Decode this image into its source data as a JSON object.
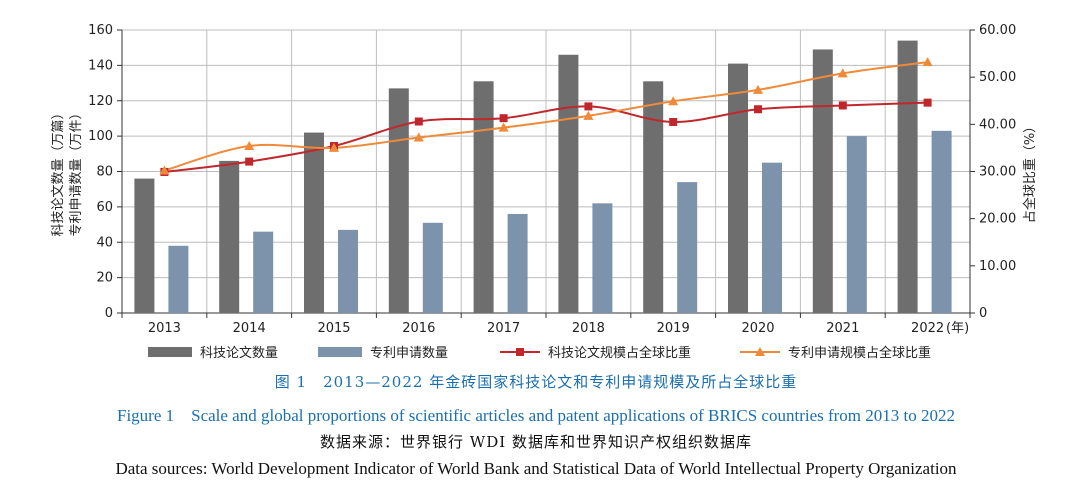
{
  "chart_data": {
    "type": "bar",
    "categories": [
      "2013",
      "2014",
      "2015",
      "2016",
      "2017",
      "2018",
      "2019",
      "2020",
      "2021",
      "2022"
    ],
    "x_unit": "(年)",
    "left_axis": {
      "label_line1": "科技论文数量（万篇）",
      "label_line2": "专利申请数量（万件）",
      "ylim": [
        0,
        160
      ],
      "ticks": [
        "0",
        "20",
        "40",
        "60",
        "80",
        "100",
        "120",
        "140",
        "160"
      ]
    },
    "right_axis": {
      "label": "占全球比重（%）",
      "ylim": [
        0,
        60
      ],
      "ticks": [
        "0",
        "10.00",
        "20.00",
        "30.00",
        "40.00",
        "50.00",
        "60.00"
      ]
    },
    "series": [
      {
        "name": "科技论文数量",
        "kind": "bar",
        "axis": "left",
        "color": "#6e6e6e",
        "values": [
          76,
          86,
          102,
          127,
          131,
          146,
          131,
          141,
          149,
          154
        ]
      },
      {
        "name": "专利申请数量",
        "kind": "bar",
        "axis": "left",
        "color": "#7d93ac",
        "values": [
          38,
          46,
          47,
          51,
          56,
          62,
          74,
          85,
          100,
          103
        ]
      },
      {
        "name": "科技论文规模占全球比重",
        "kind": "line",
        "marker": "square",
        "axis": "right",
        "color": "#c0272d",
        "values": [
          29.9,
          32.1,
          35.4,
          40.6,
          41.3,
          43.8,
          40.5,
          43.2,
          44.0,
          44.6
        ]
      },
      {
        "name": "专利申请规模占全球比重",
        "kind": "line",
        "marker": "triangle",
        "axis": "right",
        "color": "#ee8a3a",
        "values": [
          30.2,
          35.4,
          35.0,
          37.2,
          39.3,
          41.8,
          44.9,
          47.3,
          50.8,
          53.2
        ]
      }
    ]
  },
  "captions": {
    "figure_cn": "图 1　2013—2022 年金砖国家科技论文和专利申请规模及所占全球比重",
    "figure_en": "Figure 1　Scale and global proportions of scientific articles and patent applications of BRICS countries from 2013 to 2022",
    "source_cn": "数据来源：世界银行 WDI 数据库和世界知识产权组织数据库",
    "source_en": "Data sources: World Development Indicator of World Bank and Statistical Data of World Intellectual Property Organization"
  }
}
